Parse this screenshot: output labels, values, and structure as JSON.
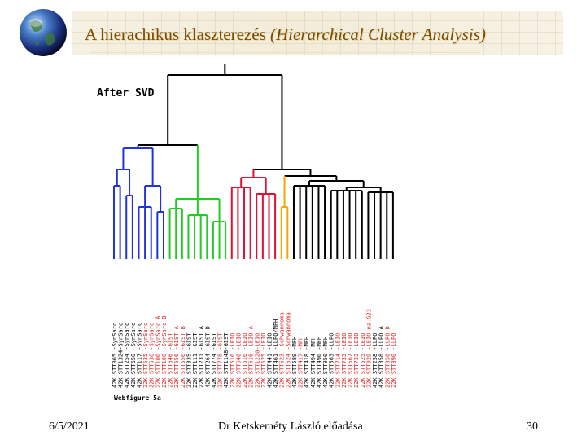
{
  "slide": {
    "title_main": "A hierachikus klaszterezés",
    "title_paren": "(Hierarchical Cluster Analysis)",
    "figure_title": "After SVD",
    "figure_caption": "Webfigure 5a",
    "footer_date": "6/5/2021",
    "footer_center": "Dr Ketskeméty László előadása",
    "footer_page": "30"
  },
  "dendrogram": {
    "colors": {
      "blue": "#2233dd",
      "green": "#22cc22",
      "red": "#dd1133",
      "yellow": "#eea800",
      "black": "#000000",
      "label_red": "#dd2222"
    },
    "leaves": [
      {
        "label": "42K STT065 -SynSarc",
        "label_color": "black",
        "group": "blue"
      },
      {
        "label": "42K STT1324-SynSarc",
        "label_color": "black",
        "group": "blue"
      },
      {
        "label": "42K STT254 -SynSarc",
        "label_color": "black",
        "group": "blue"
      },
      {
        "label": "42K STT650 -SynSarc",
        "label_color": "black",
        "group": "blue"
      },
      {
        "label": "42K STT117 -SynSarc",
        "label_color": "black",
        "group": "blue"
      },
      {
        "label": "22K STT535 -SynSarc",
        "label_color": "red",
        "group": "blue"
      },
      {
        "label": "22K STT536 -SynSarc",
        "label_color": "red",
        "group": "blue"
      },
      {
        "label": "22K STT100 -SynSarc A",
        "label_color": "red",
        "group": "blue"
      },
      {
        "label": "22K STT100 -SynSarc B",
        "label_color": "red",
        "group": "blue"
      },
      {
        "label": "22K STT646 -GIST",
        "label_color": "red",
        "group": "green"
      },
      {
        "label": "22K STT556 -GIST A",
        "label_color": "red",
        "group": "green"
      },
      {
        "label": "22K STT556 -GIST B",
        "label_color": "red",
        "group": "green"
      },
      {
        "label": "22K STT335 -GIST",
        "label_color": "black",
        "group": "green"
      },
      {
        "label": "22K STT111 -GIST",
        "label_color": "black",
        "group": "green"
      },
      {
        "label": "22K STT231 -GIST A",
        "label_color": "black",
        "group": "green"
      },
      {
        "label": "42K STT264 -GIST D",
        "label_color": "black",
        "group": "green"
      },
      {
        "label": "42K STT774 -GIST",
        "label_color": "black",
        "group": "green"
      },
      {
        "label": "22K STT778 -GIST",
        "label_color": "red",
        "group": "green"
      },
      {
        "label": "42K STT1148-GIST",
        "label_color": "black",
        "group": "green"
      },
      {
        "label": "22K STT516 -LEIO",
        "label_color": "red",
        "group": "red"
      },
      {
        "label": "22K STT640 -LEIO",
        "label_color": "red",
        "group": "red"
      },
      {
        "label": "22K STT516 -LEIO",
        "label_color": "red",
        "group": "red"
      },
      {
        "label": "22K STT516 -LEIO A",
        "label_color": "red",
        "group": "red"
      },
      {
        "label": "22K STT1220-LEIO",
        "label_color": "red",
        "group": "red"
      },
      {
        "label": "22K STT525 -LEIO",
        "label_color": "red",
        "group": "red"
      },
      {
        "label": "42K STT441 -LEIO",
        "label_color": "black",
        "group": "red"
      },
      {
        "label": "42K STT461 -LLPO/MFH",
        "label_color": "black",
        "group": "red"
      },
      {
        "label": "22K STT523 -Schwannoma",
        "label_color": "red",
        "group": "yellow"
      },
      {
        "label": "22K STT524 -Schwannoma",
        "label_color": "red",
        "group": "yellow"
      },
      {
        "label": "42K STT589 -MFH",
        "label_color": "black",
        "group": "black"
      },
      {
        "label": "22K STT417 -MFH",
        "label_color": "red",
        "group": "black"
      },
      {
        "label": "42K STT418 -MFH",
        "label_color": "black",
        "group": "black"
      },
      {
        "label": "42K STT494 -MFH",
        "label_color": "black",
        "group": "black"
      },
      {
        "label": "42K STT490 -MFH",
        "label_color": "black",
        "group": "black"
      },
      {
        "label": "42K STT050 -MFH",
        "label_color": "black",
        "group": "black"
      },
      {
        "label": "42K STT563 -LLPO",
        "label_color": "black",
        "group": "black"
      },
      {
        "label": "22K STT714 -LEIO",
        "label_color": "red",
        "group": "black"
      },
      {
        "label": "22K STT735 -LEIO",
        "label_color": "red",
        "group": "black"
      },
      {
        "label": "22K STT567 -LEIO",
        "label_color": "red",
        "group": "black"
      },
      {
        "label": "22K STT733 -LEIO",
        "label_color": "red",
        "group": "black"
      },
      {
        "label": "22K STT525 -LEIO",
        "label_color": "red",
        "group": "black"
      },
      {
        "label": "22K STT029 -LEIO na.G23",
        "label_color": "red",
        "group": "black"
      },
      {
        "label": "42K STT258 -LLPO",
        "label_color": "black",
        "group": "black"
      },
      {
        "label": "42K STT358 -LLPO A",
        "label_color": "black",
        "group": "black"
      },
      {
        "label": "22K STT350 -LLPO D",
        "label_color": "red",
        "group": "black"
      },
      {
        "label": "22K STT390 -LLPO",
        "label_color": "red",
        "group": "black"
      }
    ]
  }
}
